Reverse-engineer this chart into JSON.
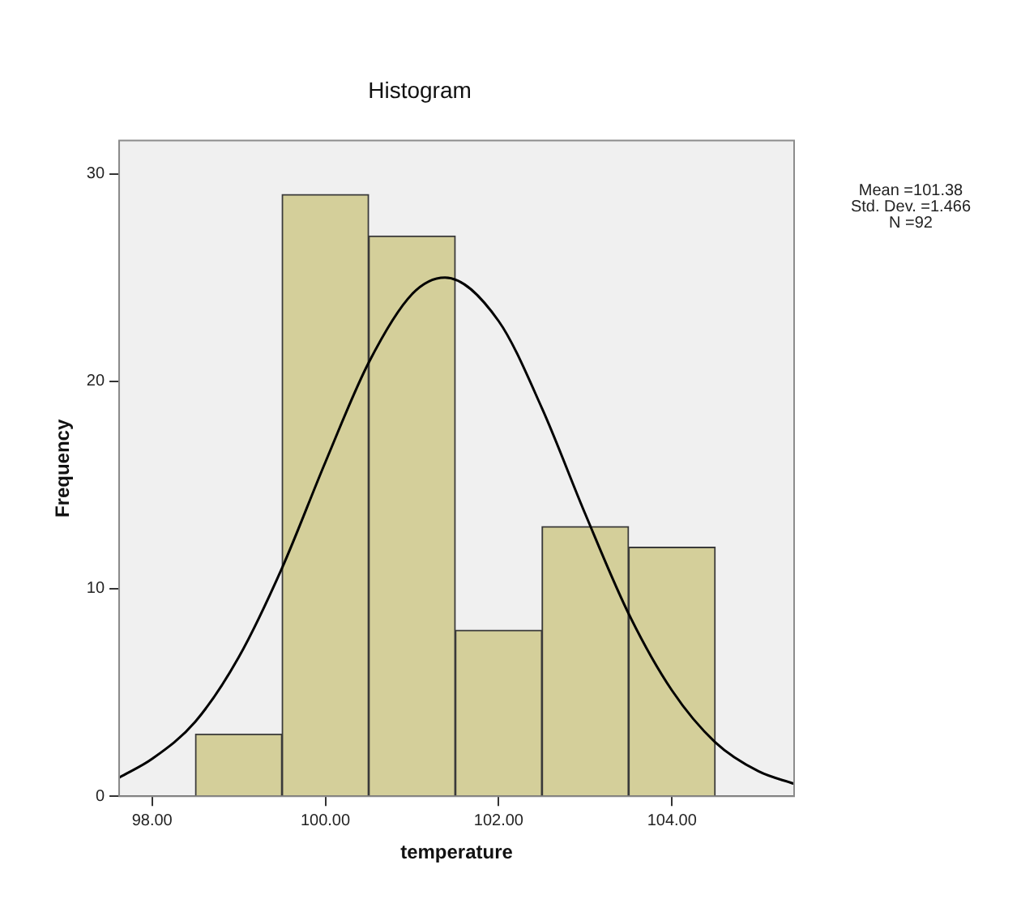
{
  "chart_data": {
    "type": "histogram",
    "title": "Histogram",
    "xlabel": "temperature",
    "ylabel": "Frequency",
    "bins": [
      98.5,
      99.5,
      100.5,
      101.5,
      102.5,
      103.5,
      104.5
    ],
    "values": [
      3,
      29,
      27,
      8,
      13,
      12
    ],
    "color": "#d4cf9a",
    "series": [
      {
        "type": "line",
        "color": "#000000",
        "x": [
          97.62,
          98,
          98.5,
          99,
          99.5,
          100,
          100.5,
          101,
          101.38,
          102,
          102.5,
          103,
          103.5,
          104,
          104.5,
          105,
          105.41
        ],
        "values": [
          0.9,
          1.8,
          3.6,
          6.7,
          11,
          16.1,
          20.9,
          24.2,
          25,
          22.9,
          18.7,
          13.6,
          8.8,
          5.1,
          2.6,
          1.2,
          0.6
        ]
      }
    ],
    "xlim": [
      97.62,
      105.41
    ],
    "xticks": [
      {
        "value": 98,
        "label": "98.00"
      },
      {
        "value": 100,
        "label": "100.00"
      },
      {
        "value": 102,
        "label": "102.00"
      },
      {
        "value": 104,
        "label": "104.00"
      }
    ],
    "ylim": [
      0,
      31.6
    ],
    "yticks": [
      0,
      10,
      20,
      30
    ],
    "grid": false,
    "marker": "none",
    "annotations": [
      "Mean =101.38",
      "Std. Dev. =1.466",
      "N =92"
    ]
  }
}
